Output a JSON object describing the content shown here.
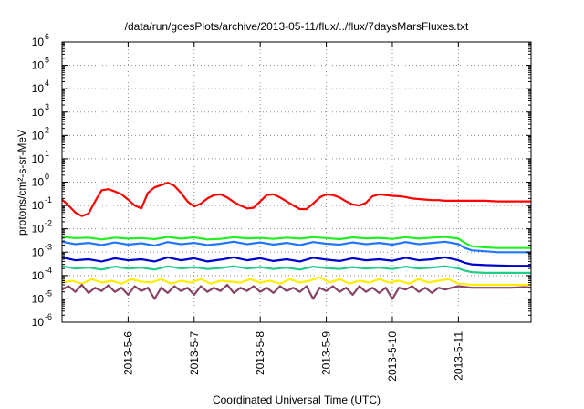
{
  "chart_data": {
    "type": "line",
    "title": "/data/run/goesPlots/archive/2013-05-11/flux/../flux/7daysMarsFluxes.txt",
    "xlabel": "Coordinated Universal Time (UTC)",
    "ylabel": "protons/cm²-s-sr-MeV",
    "yscale": "log",
    "ylim": [
      1e-06,
      1000000.0
    ],
    "xlim_days": [
      0,
      7.1
    ],
    "grid": "dotted",
    "legend": "none",
    "x_ticks": [
      {
        "label": "2013-5-6",
        "day": 1
      },
      {
        "label": "2013-5-7",
        "day": 2
      },
      {
        "label": "2013-5-8",
        "day": 3
      },
      {
        "label": "2013-5-9",
        "day": 4
      },
      {
        "label": "2013-5-10",
        "day": 5
      },
      {
        "label": "2013-5-11",
        "day": 6
      }
    ],
    "y_ticks": [
      {
        "base": "10",
        "exp": "-6",
        "v": -6
      },
      {
        "base": "10",
        "exp": "-5",
        "v": -5
      },
      {
        "base": "10",
        "exp": "-4",
        "v": -4
      },
      {
        "base": "10",
        "exp": "-3",
        "v": -3
      },
      {
        "base": "10",
        "exp": "-2",
        "v": -2
      },
      {
        "base": "10",
        "exp": "-1",
        "v": -1
      },
      {
        "base": "10",
        "exp": "0",
        "v": 0
      },
      {
        "base": "10",
        "exp": "1",
        "v": 1
      },
      {
        "base": "10",
        "exp": "2",
        "v": 2
      },
      {
        "base": "10",
        "exp": "3",
        "v": 3
      },
      {
        "base": "10",
        "exp": "4",
        "v": 4
      },
      {
        "base": "10",
        "exp": "5",
        "v": 5
      },
      {
        "base": "10",
        "exp": "6",
        "v": 6
      }
    ],
    "series": [
      {
        "color": "#ff0000",
        "x": [
          0,
          0.1,
          0.2,
          0.3,
          0.4,
          0.5,
          0.6,
          0.7,
          0.8,
          0.9,
          1.0,
          1.1,
          1.2,
          1.3,
          1.4,
          1.5,
          1.6,
          1.7,
          1.8,
          1.9,
          2.0,
          2.1,
          2.2,
          2.3,
          2.4,
          2.5,
          2.6,
          2.7,
          2.8,
          2.9,
          3.0,
          3.1,
          3.2,
          3.3,
          3.4,
          3.5,
          3.6,
          3.7,
          3.8,
          3.9,
          4.0,
          4.1,
          4.2,
          4.3,
          4.4,
          4.5,
          4.6,
          4.7,
          4.8,
          4.9,
          5.0,
          5.1,
          5.2,
          5.3,
          5.4,
          5.5,
          5.6,
          5.7,
          5.8,
          5.9,
          6.0,
          6.2,
          6.4,
          6.6,
          6.8,
          7.0,
          7.1
        ],
        "y": [
          0.18,
          0.1,
          0.05,
          0.035,
          0.045,
          0.15,
          0.45,
          0.5,
          0.4,
          0.3,
          0.18,
          0.1,
          0.075,
          0.35,
          0.6,
          0.75,
          0.95,
          0.7,
          0.35,
          0.15,
          0.09,
          0.12,
          0.2,
          0.28,
          0.3,
          0.22,
          0.14,
          0.1,
          0.075,
          0.08,
          0.15,
          0.28,
          0.3,
          0.22,
          0.15,
          0.1,
          0.07,
          0.07,
          0.12,
          0.22,
          0.3,
          0.28,
          0.22,
          0.15,
          0.11,
          0.1,
          0.13,
          0.25,
          0.3,
          0.28,
          0.26,
          0.25,
          0.23,
          0.2,
          0.19,
          0.18,
          0.17,
          0.17,
          0.16,
          0.16,
          0.16,
          0.16,
          0.16,
          0.15,
          0.15,
          0.15,
          0.15
        ]
      },
      {
        "color": "#22ee22",
        "x": [
          0,
          0.2,
          0.4,
          0.6,
          0.8,
          1.0,
          1.2,
          1.4,
          1.6,
          1.8,
          2.0,
          2.2,
          2.4,
          2.6,
          2.8,
          3.0,
          3.2,
          3.4,
          3.6,
          3.8,
          4.0,
          4.2,
          4.4,
          4.6,
          4.8,
          5.0,
          5.2,
          5.4,
          5.6,
          5.8,
          6.0,
          6.1,
          6.2,
          6.4,
          6.6,
          6.8,
          7.0,
          7.1
        ],
        "y": [
          0.0045,
          0.004,
          0.0042,
          0.0035,
          0.0042,
          0.0038,
          0.004,
          0.0036,
          0.0045,
          0.0038,
          0.0043,
          0.0035,
          0.0037,
          0.0044,
          0.0039,
          0.0041,
          0.0037,
          0.0042,
          0.0038,
          0.0044,
          0.004,
          0.0036,
          0.0043,
          0.0039,
          0.0041,
          0.0037,
          0.0044,
          0.0038,
          0.0042,
          0.0045,
          0.0038,
          0.0025,
          0.0018,
          0.0016,
          0.0015,
          0.0015,
          0.0015,
          0.0015
        ]
      },
      {
        "color": "#2277ff",
        "x": [
          0,
          0.2,
          0.4,
          0.6,
          0.8,
          1.0,
          1.2,
          1.4,
          1.6,
          1.8,
          2.0,
          2.2,
          2.4,
          2.6,
          2.8,
          3.0,
          3.2,
          3.4,
          3.6,
          3.8,
          4.0,
          4.2,
          4.4,
          4.6,
          4.8,
          5.0,
          5.2,
          5.4,
          5.6,
          5.8,
          6.0,
          6.1,
          6.2,
          6.4,
          6.6,
          6.8,
          7.0,
          7.1
        ],
        "y": [
          0.0028,
          0.0022,
          0.0025,
          0.002,
          0.0026,
          0.0021,
          0.0024,
          0.0019,
          0.0027,
          0.0022,
          0.0025,
          0.002,
          0.0023,
          0.0028,
          0.0022,
          0.0026,
          0.0021,
          0.0025,
          0.002,
          0.0027,
          0.0023,
          0.0021,
          0.0026,
          0.0022,
          0.0025,
          0.0021,
          0.0027,
          0.0022,
          0.0025,
          0.0028,
          0.0022,
          0.0015,
          0.0012,
          0.0011,
          0.001,
          0.001,
          0.001,
          0.001
        ]
      },
      {
        "color": "#0000cc",
        "x": [
          0,
          0.2,
          0.4,
          0.6,
          0.8,
          1.0,
          1.2,
          1.4,
          1.6,
          1.8,
          2.0,
          2.2,
          2.4,
          2.6,
          2.8,
          3.0,
          3.2,
          3.4,
          3.6,
          3.8,
          4.0,
          4.2,
          4.4,
          4.6,
          4.8,
          5.0,
          5.2,
          5.4,
          5.6,
          5.8,
          6.0,
          6.1,
          6.2,
          6.4,
          6.6,
          6.8,
          7.0,
          7.1
        ],
        "y": [
          0.0006,
          0.00045,
          0.0005,
          0.0004,
          0.00055,
          0.00045,
          0.0005,
          0.0004,
          0.0006,
          0.00045,
          0.00055,
          0.0004,
          0.00048,
          0.0006,
          0.00045,
          0.00055,
          0.00042,
          0.0005,
          0.0004,
          0.00058,
          0.00048,
          0.00042,
          0.00055,
          0.00045,
          0.0005,
          0.00043,
          0.00058,
          0.00045,
          0.0005,
          0.0006,
          0.00045,
          0.00035,
          0.0003,
          0.00028,
          0.00027,
          0.00026,
          0.00026,
          0.00026
        ]
      },
      {
        "color": "#22cc88",
        "x": [
          0,
          0.2,
          0.4,
          0.6,
          0.8,
          1.0,
          1.2,
          1.4,
          1.6,
          1.8,
          2.0,
          2.2,
          2.4,
          2.6,
          2.8,
          3.0,
          3.2,
          3.4,
          3.6,
          3.8,
          4.0,
          4.2,
          4.4,
          4.6,
          4.8,
          5.0,
          5.2,
          5.4,
          5.6,
          5.8,
          6.0,
          6.1,
          6.2,
          6.4,
          6.6,
          6.8,
          7.0,
          7.1
        ],
        "y": [
          0.00025,
          0.0002,
          0.00022,
          0.00018,
          0.00024,
          0.0002,
          0.00022,
          0.00018,
          0.00025,
          0.0002,
          0.00023,
          0.00019,
          0.00021,
          0.00025,
          0.0002,
          0.00023,
          0.00019,
          0.00022,
          0.00018,
          0.00024,
          0.00021,
          0.00019,
          0.00023,
          0.0002,
          0.00022,
          0.00019,
          0.00024,
          0.0002,
          0.00022,
          0.00025,
          0.0002,
          0.00016,
          0.00014,
          0.00013,
          0.00013,
          0.00013,
          0.00013,
          0.00013
        ]
      },
      {
        "color": "#ffee00",
        "x": [
          0,
          0.15,
          0.3,
          0.45,
          0.6,
          0.75,
          0.9,
          1.05,
          1.2,
          1.35,
          1.5,
          1.65,
          1.8,
          1.95,
          2.1,
          2.25,
          2.4,
          2.55,
          2.7,
          2.85,
          3.0,
          3.15,
          3.3,
          3.45,
          3.6,
          3.75,
          3.9,
          4.05,
          4.2,
          4.35,
          4.5,
          4.65,
          4.8,
          4.95,
          5.1,
          5.25,
          5.4,
          5.55,
          5.7,
          5.85,
          6.0,
          6.2,
          6.4,
          6.6,
          6.8,
          7.0,
          7.1
        ],
        "y": [
          5e-05,
          6e-05,
          4.5e-05,
          7e-05,
          5e-05,
          6e-05,
          4.5e-05,
          7e-05,
          5.5e-05,
          5e-05,
          7e-05,
          4.5e-05,
          6e-05,
          5e-05,
          7e-05,
          4.5e-05,
          6e-05,
          5.5e-05,
          5e-05,
          7e-05,
          5e-05,
          6e-05,
          4.5e-05,
          7e-05,
          5e-05,
          6e-05,
          8.5e-05,
          5e-05,
          7e-05,
          4.5e-05,
          6e-05,
          5e-05,
          7e-05,
          5e-05,
          6e-05,
          4.5e-05,
          7e-05,
          5e-05,
          6e-05,
          7e-05,
          4.5e-05,
          4e-05,
          4e-05,
          4e-05,
          4e-05,
          4e-05,
          4e-05
        ]
      },
      {
        "color": "#884466",
        "x": [
          0,
          0.1,
          0.2,
          0.3,
          0.4,
          0.5,
          0.6,
          0.7,
          0.8,
          0.9,
          1.0,
          1.1,
          1.2,
          1.3,
          1.4,
          1.5,
          1.6,
          1.7,
          1.8,
          1.9,
          2.0,
          2.1,
          2.2,
          2.3,
          2.4,
          2.5,
          2.6,
          2.7,
          2.8,
          2.9,
          3.0,
          3.1,
          3.2,
          3.3,
          3.4,
          3.5,
          3.6,
          3.7,
          3.8,
          3.9,
          4.0,
          4.1,
          4.2,
          4.3,
          4.4,
          4.5,
          4.6,
          4.7,
          4.8,
          4.9,
          5.0,
          5.1,
          5.2,
          5.3,
          5.4,
          5.5,
          5.6,
          5.7,
          5.8,
          5.9,
          6.0,
          6.2,
          6.4,
          6.6,
          6.8,
          7.0,
          7.1
        ],
        "y": [
          2.5e-05,
          3.5e-05,
          2e-05,
          4e-05,
          1.8e-05,
          3e-05,
          2.2e-05,
          3.8e-05,
          2e-05,
          3e-05,
          1.5e-05,
          3.5e-05,
          2.2e-05,
          3e-05,
          1e-05,
          3e-05,
          1.8e-05,
          3.5e-05,
          2.2e-05,
          3e-05,
          1.5e-05,
          3.5e-05,
          2e-05,
          3e-05,
          2.2e-05,
          4e-05,
          1.8e-05,
          3e-05,
          2.2e-05,
          3.5e-05,
          2e-05,
          3e-05,
          1.8e-05,
          3.5e-05,
          2.2e-05,
          3e-05,
          2e-05,
          3.5e-05,
          1e-05,
          3e-05,
          2.2e-05,
          3.5e-05,
          2e-05,
          3e-05,
          1.5e-05,
          3.5e-05,
          2e-05,
          3e-05,
          1.8e-05,
          3e-05,
          1e-05,
          3e-05,
          2.5e-05,
          3.5e-05,
          2e-05,
          3e-05,
          1.8e-05,
          3e-05,
          2.5e-05,
          3e-05,
          3.5e-05,
          3e-05,
          3e-05,
          3e-05,
          3e-05,
          3.2e-05,
          3e-05
        ]
      }
    ]
  }
}
